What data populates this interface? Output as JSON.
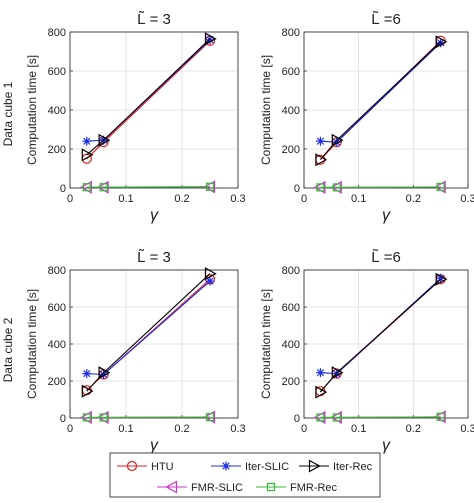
{
  "figure": {
    "row_labels": [
      "Data cube 1",
      "Data cube 2"
    ],
    "legend": [
      {
        "label": "HTU",
        "color": "#e0201f",
        "marker": "circle"
      },
      {
        "label": "Iter-SLIC",
        "color": "#1f2ee6",
        "marker": "star"
      },
      {
        "label": "Iter-Rec",
        "color": "#000000",
        "marker": "tri-right"
      },
      {
        "label": "FMR-SLIC",
        "color": "#cc33cc",
        "marker": "tri-left"
      },
      {
        "label": "FMR-Rec",
        "color": "#33bb33",
        "marker": "square"
      }
    ]
  },
  "chart_data": [
    {
      "type": "line",
      "title": "L̃ = 3",
      "xlabel": "γ",
      "ylabel": "Computation time [s]",
      "xlim": [
        0,
        0.3
      ],
      "ylim": [
        0,
        800
      ],
      "xticks": [
        "0",
        "0.1",
        "0.2",
        "0.3"
      ],
      "yticks": [
        "0",
        "200",
        "400",
        "600",
        "800"
      ],
      "grid": true,
      "x": [
        0.03,
        0.06,
        0.25
      ],
      "series": [
        {
          "name": "HTU",
          "values": [
            150,
            235,
            755
          ]
        },
        {
          "name": "Iter-SLIC",
          "values": [
            240,
            245,
            760
          ]
        },
        {
          "name": "Iter-Rec",
          "values": [
            170,
            245,
            765
          ]
        },
        {
          "name": "FMR-SLIC",
          "values": [
            4,
            4,
            6
          ]
        },
        {
          "name": "FMR-Rec",
          "values": [
            4,
            4,
            6
          ]
        }
      ]
    },
    {
      "type": "line",
      "title": "L̃ =6",
      "xlabel": "γ",
      "ylabel": "Computation time [s]",
      "xlim": [
        0,
        0.3
      ],
      "ylim": [
        0,
        800
      ],
      "xticks": [
        "0",
        "0.1",
        "0.2",
        "0.3"
      ],
      "yticks": [
        "0",
        "200",
        "400",
        "600",
        "800"
      ],
      "grid": true,
      "x": [
        0.03,
        0.06,
        0.25
      ],
      "series": [
        {
          "name": "HTU",
          "values": [
            145,
            235,
            755
          ]
        },
        {
          "name": "Iter-SLIC",
          "values": [
            240,
            235,
            745
          ]
        },
        {
          "name": "Iter-Rec",
          "values": [
            145,
            245,
            750
          ]
        },
        {
          "name": "FMR-SLIC",
          "values": [
            3,
            3,
            5
          ]
        },
        {
          "name": "FMR-Rec",
          "values": [
            3,
            3,
            5
          ]
        }
      ]
    },
    {
      "type": "line",
      "title": "L̃ = 3",
      "xlabel": "γ",
      "ylabel": "Computation time [s]",
      "xlim": [
        0,
        0.3
      ],
      "ylim": [
        0,
        800
      ],
      "xticks": [
        "0",
        "0.1",
        "0.2",
        "0.3"
      ],
      "yticks": [
        "0",
        "200",
        "400",
        "600",
        "800"
      ],
      "grid": true,
      "x": [
        0.03,
        0.06,
        0.25
      ],
      "series": [
        {
          "name": "HTU",
          "values": [
            150,
            235,
            750
          ]
        },
        {
          "name": "Iter-SLIC",
          "values": [
            240,
            235,
            740
          ]
        },
        {
          "name": "Iter-Rec",
          "values": [
            145,
            245,
            780
          ]
        },
        {
          "name": "FMR-SLIC",
          "values": [
            3,
            3,
            5
          ]
        },
        {
          "name": "FMR-Rec",
          "values": [
            3,
            3,
            5
          ]
        }
      ]
    },
    {
      "type": "line",
      "title": "L̃ =6",
      "xlabel": "γ",
      "ylabel": "Computation time [s]",
      "xlim": [
        0,
        0.3
      ],
      "ylim": [
        0,
        800
      ],
      "xticks": [
        "0",
        "0.1",
        "0.2",
        "0.3"
      ],
      "yticks": [
        "0",
        "200",
        "400",
        "600",
        "800"
      ],
      "grid": true,
      "x": [
        0.03,
        0.06,
        0.25
      ],
      "series": [
        {
          "name": "HTU",
          "values": [
            145,
            240,
            750
          ]
        },
        {
          "name": "Iter-SLIC",
          "values": [
            245,
            240,
            755
          ]
        },
        {
          "name": "Iter-Rec",
          "values": [
            140,
            245,
            750
          ]
        },
        {
          "name": "FMR-SLIC",
          "values": [
            3,
            3,
            6
          ]
        },
        {
          "name": "FMR-Rec",
          "values": [
            3,
            3,
            6
          ]
        }
      ]
    }
  ]
}
